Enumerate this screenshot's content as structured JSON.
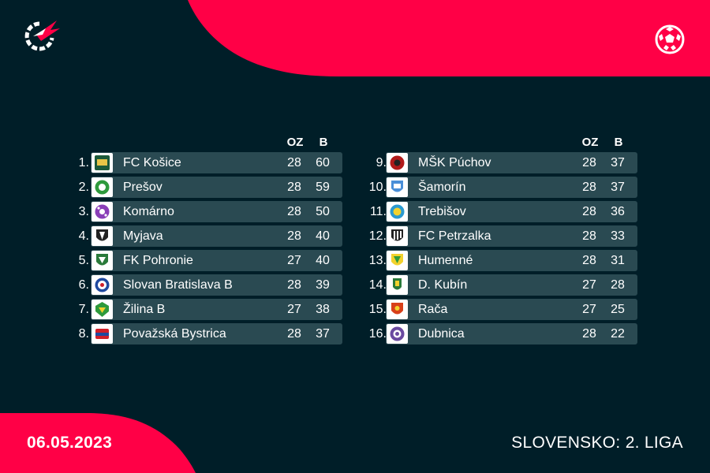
{
  "columns": {
    "games_label": "OZ",
    "points_label": "B"
  },
  "icons": {
    "logo": "flashscore-logo-icon",
    "sport": "soccer-ball-icon"
  },
  "colors": {
    "background": "#001e28",
    "accent": "#ff0046",
    "row": "#2a4a52"
  },
  "standings_left": [
    {
      "rank": "1.",
      "team": "FC Košice",
      "gp": "28",
      "pts": "60",
      "crest": "kosice-crest-icon"
    },
    {
      "rank": "2.",
      "team": "Prešov",
      "gp": "28",
      "pts": "59",
      "crest": "presov-crest-icon"
    },
    {
      "rank": "3.",
      "team": "Komárno",
      "gp": "28",
      "pts": "50",
      "crest": "komarno-crest-icon"
    },
    {
      "rank": "4.",
      "team": "Myjava",
      "gp": "28",
      "pts": "40",
      "crest": "myjava-crest-icon"
    },
    {
      "rank": "5.",
      "team": "FK Pohronie",
      "gp": "27",
      "pts": "40",
      "crest": "pohronie-crest-icon"
    },
    {
      "rank": "6.",
      "team": "Slovan Bratislava B",
      "gp": "28",
      "pts": "39",
      "crest": "slovan-crest-icon"
    },
    {
      "rank": "7.",
      "team": "Žilina B",
      "gp": "27",
      "pts": "38",
      "crest": "zilina-crest-icon"
    },
    {
      "rank": "8.",
      "team": "Považská Bystrica",
      "gp": "28",
      "pts": "37",
      "crest": "povazska-crest-icon"
    }
  ],
  "standings_right": [
    {
      "rank": "9.",
      "team": "MŠK Púchov",
      "gp": "28",
      "pts": "37",
      "crest": "puchov-crest-icon"
    },
    {
      "rank": "10.",
      "team": "Šamorín",
      "gp": "28",
      "pts": "37",
      "crest": "samorin-crest-icon"
    },
    {
      "rank": "11.",
      "team": "Trebišov",
      "gp": "28",
      "pts": "36",
      "crest": "trebisov-crest-icon"
    },
    {
      "rank": "12.",
      "team": "FC Petrzalka",
      "gp": "28",
      "pts": "33",
      "crest": "petrzalka-crest-icon"
    },
    {
      "rank": "13.",
      "team": "Humenné",
      "gp": "28",
      "pts": "31",
      "crest": "humenne-crest-icon"
    },
    {
      "rank": "14.",
      "team": "D. Kubín",
      "gp": "27",
      "pts": "28",
      "crest": "kubin-crest-icon"
    },
    {
      "rank": "15.",
      "team": "Rača",
      "gp": "27",
      "pts": "25",
      "crest": "raca-crest-icon"
    },
    {
      "rank": "16.",
      "team": "Dubnica",
      "gp": "28",
      "pts": "22",
      "crest": "dubnica-crest-icon"
    }
  ],
  "footer": {
    "date": "06.05.2023",
    "league": "SLOVENSKO: 2. LIGA"
  }
}
